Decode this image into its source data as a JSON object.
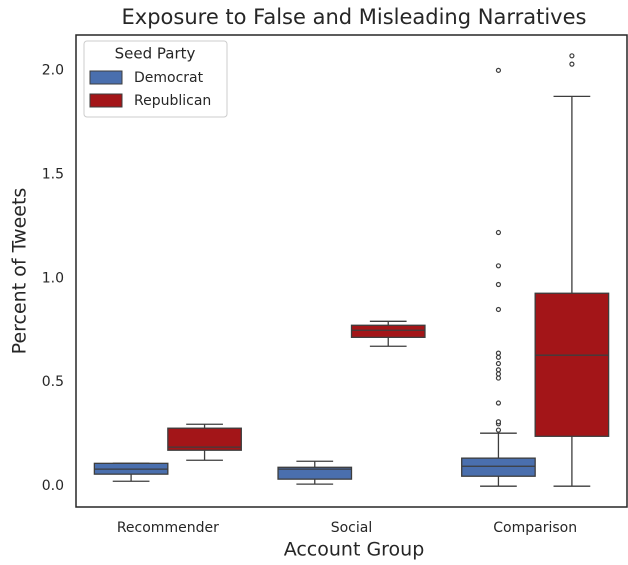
{
  "chart_data": {
    "type": "box",
    "title": "Exposure to False and Misleading Narratives",
    "x_label": "Account Group",
    "y_label": "Percent of Tweets",
    "categories": [
      "Recommender",
      "Social",
      "Comparison"
    ],
    "legend_title": "Seed Party",
    "legend_position": "upper left",
    "ylim": [
      -0.1,
      2.17
    ],
    "yticks": [
      {
        "value": 0,
        "label": "0.0"
      },
      0.5,
      {
        "value": 1,
        "label": "1.0"
      },
      1.5,
      {
        "value": 2,
        "label": "2.0"
      }
    ],
    "series": [
      {
        "name": "Democrat",
        "color": "#4a6fae",
        "boxes": [
          {
            "min": 0.024,
            "q1": 0.058,
            "median": 0.082,
            "q3": 0.11,
            "max": 0.11,
            "outliers": []
          },
          {
            "min": 0.01,
            "q1": 0.034,
            "median": 0.082,
            "q3": 0.091,
            "max": 0.12,
            "outliers": []
          },
          {
            "min": 0,
            "q1": 0.048,
            "median": 0.096,
            "q3": 0.135,
            "max": 0.255,
            "outliers": [
              0.27,
              0.3,
              0.31,
              0.4,
              0.52,
              0.54,
              0.56,
              0.59,
              0.62,
              0.64,
              0.85,
              0.97,
              1.06,
              1.22,
              2.0
            ]
          }
        ]
      },
      {
        "name": "Republican",
        "color": "#a31518",
        "boxes": [
          {
            "min": 0.125,
            "q1": 0.173,
            "median": 0.188,
            "q3": 0.279,
            "max": 0.298,
            "outliers": []
          },
          {
            "min": 0.673,
            "q1": 0.716,
            "median": 0.75,
            "q3": 0.774,
            "max": 0.793,
            "outliers": []
          },
          {
            "min": 0,
            "q1": 0.24,
            "median": 0.63,
            "q3": 0.928,
            "max": 1.875,
            "outliers": [
              2.03,
              2.07
            ]
          }
        ]
      }
    ]
  }
}
